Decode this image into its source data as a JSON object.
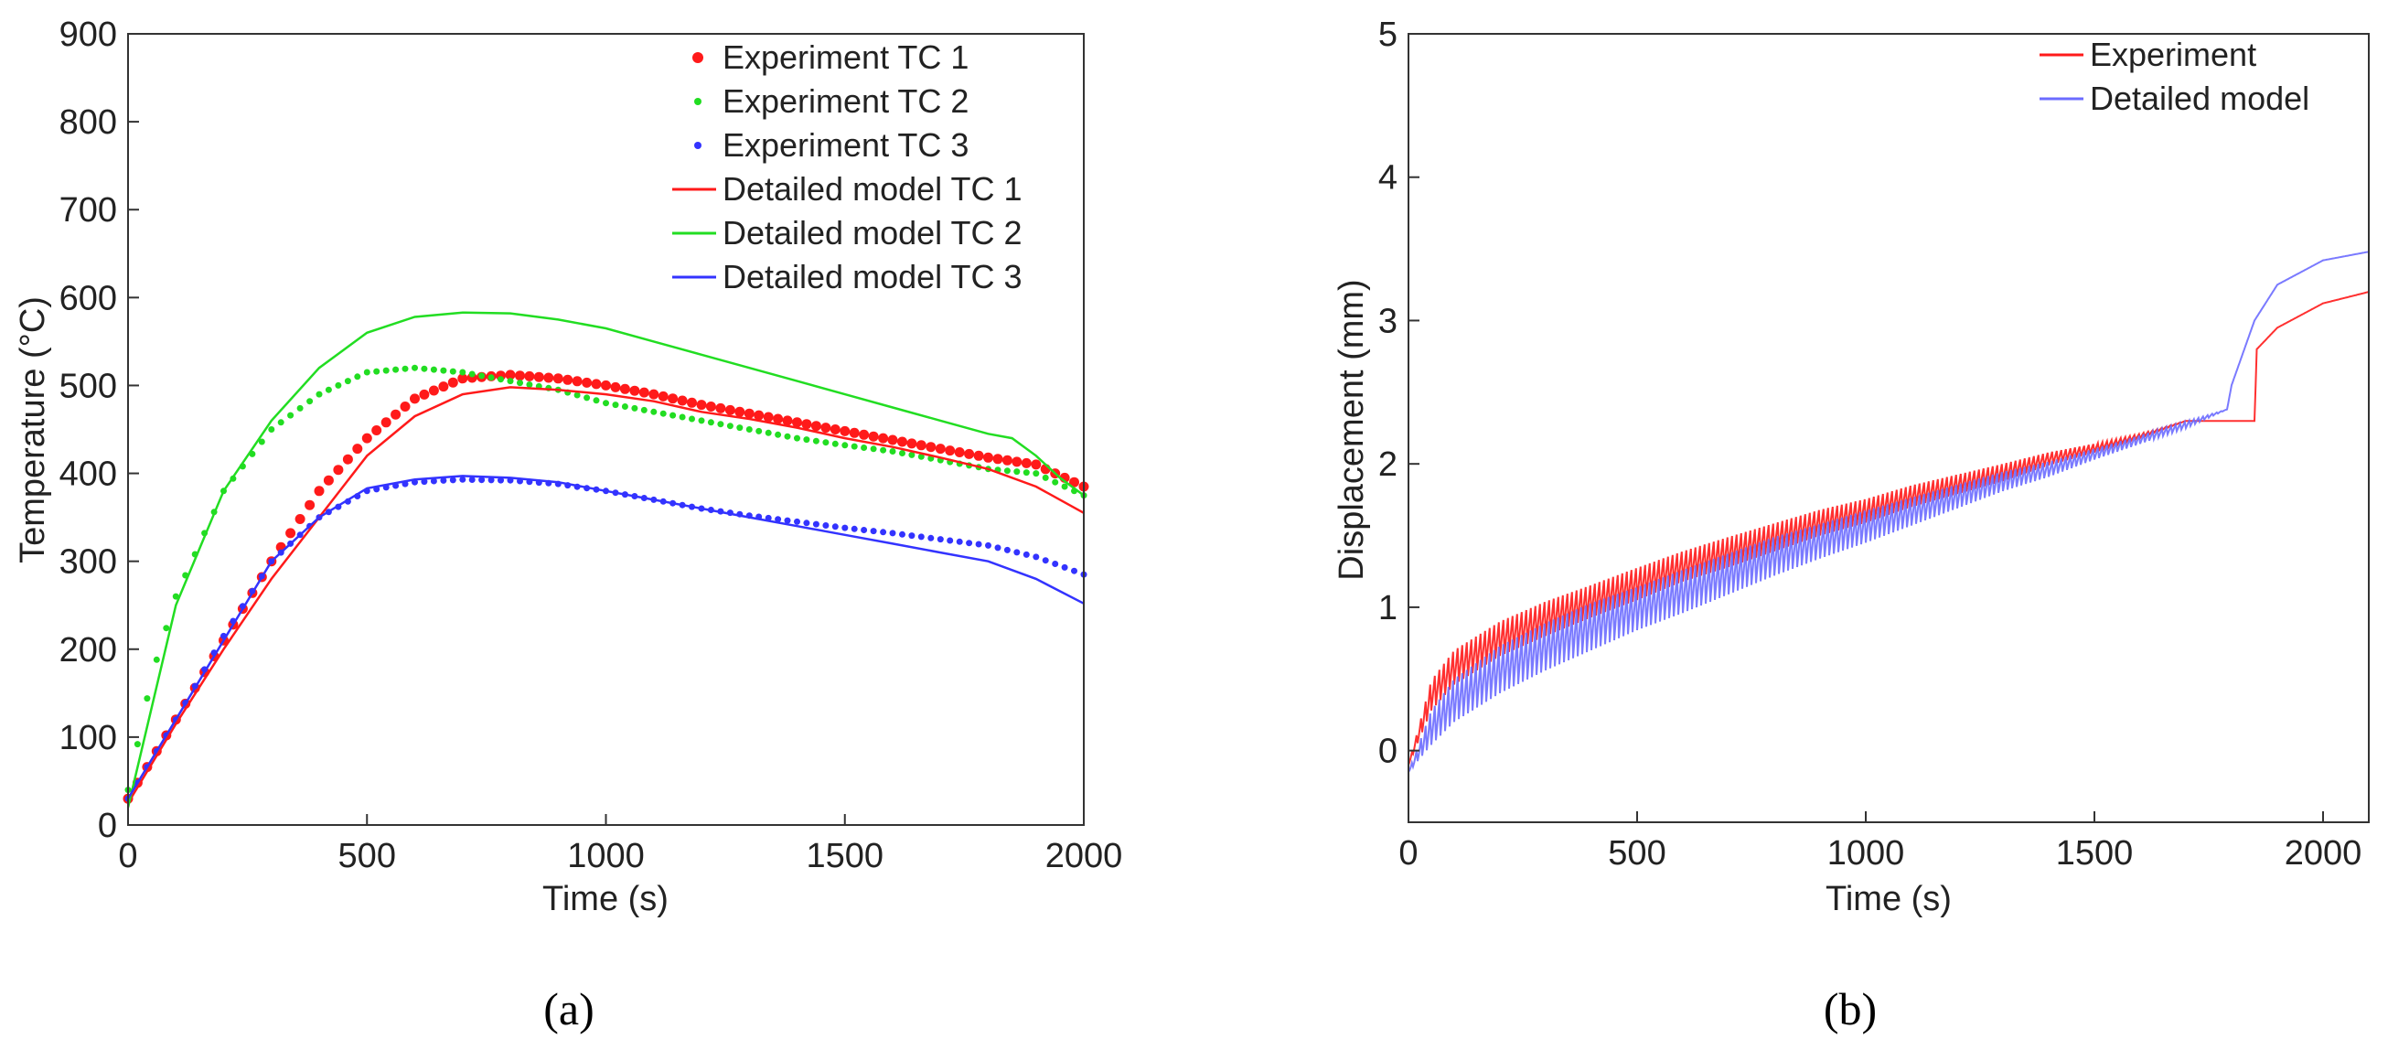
{
  "chart_data": [
    {
      "type": "line",
      "panel_label": "(a)",
      "xlabel": "Time (s)",
      "ylabel": "Temperature (°C)",
      "xlim": [
        0,
        2000
      ],
      "ylim": [
        0,
        900
      ],
      "xticks": [
        0,
        500,
        1000,
        1500,
        2000
      ],
      "yticks": [
        0,
        100,
        200,
        300,
        400,
        500,
        600,
        700,
        800,
        900
      ],
      "legend_position": "top-right",
      "series": [
        {
          "name": "Experiment TC 1",
          "style": "dots-large",
          "color": "#ff1a1a",
          "x": [
            0,
            100,
            200,
            300,
            400,
            500,
            600,
            700,
            800,
            900,
            1000,
            1100,
            1200,
            1300,
            1400,
            1500,
            1600,
            1700,
            1800,
            1900,
            2000
          ],
          "y": [
            30,
            120,
            210,
            300,
            380,
            440,
            485,
            508,
            512,
            508,
            500,
            490,
            478,
            468,
            458,
            448,
            438,
            428,
            418,
            410,
            385
          ]
        },
        {
          "name": "Experiment TC 2",
          "style": "dots-small",
          "color": "#22dd22",
          "x": [
            0,
            50,
            100,
            200,
            300,
            400,
            500,
            600,
            700,
            800,
            900,
            1000,
            1100,
            1200,
            1300,
            1400,
            1500,
            1600,
            1700,
            1800,
            1900,
            2000
          ],
          "y": [
            40,
            170,
            260,
            380,
            450,
            490,
            515,
            520,
            515,
            505,
            495,
            480,
            470,
            460,
            450,
            440,
            432,
            425,
            415,
            405,
            400,
            375
          ]
        },
        {
          "name": "Experiment TC 3",
          "style": "dots-small",
          "color": "#3333ff",
          "x": [
            0,
            100,
            200,
            300,
            400,
            500,
            600,
            700,
            800,
            900,
            1000,
            1100,
            1200,
            1300,
            1400,
            1500,
            1600,
            1700,
            1800,
            1900,
            2000
          ],
          "y": [
            30,
            120,
            215,
            300,
            350,
            380,
            390,
            393,
            392,
            388,
            380,
            370,
            360,
            352,
            345,
            338,
            332,
            325,
            318,
            305,
            285
          ]
        },
        {
          "name": "Detailed model TC 1",
          "style": "line",
          "color": "#ff1a1a",
          "x": [
            0,
            100,
            200,
            300,
            400,
            500,
            600,
            700,
            800,
            900,
            1000,
            1100,
            1200,
            1300,
            1400,
            1500,
            1600,
            1700,
            1800,
            1900,
            2000
          ],
          "y": [
            25,
            115,
            200,
            280,
            350,
            420,
            465,
            490,
            498,
            495,
            490,
            482,
            470,
            462,
            452,
            440,
            430,
            418,
            405,
            385,
            355
          ]
        },
        {
          "name": "Detailed model TC 2",
          "style": "line",
          "color": "#22dd22",
          "x": [
            0,
            100,
            200,
            300,
            400,
            500,
            600,
            700,
            800,
            900,
            1000,
            1100,
            1200,
            1300,
            1400,
            1500,
            1600,
            1700,
            1800,
            1850,
            1900,
            1950,
            2000
          ],
          "y": [
            20,
            250,
            380,
            460,
            520,
            560,
            578,
            583,
            582,
            575,
            565,
            550,
            535,
            520,
            505,
            490,
            475,
            460,
            445,
            440,
            420,
            395,
            375
          ]
        },
        {
          "name": "Detailed model TC 3",
          "style": "line",
          "color": "#3333ff",
          "x": [
            0,
            100,
            200,
            300,
            400,
            500,
            600,
            700,
            800,
            900,
            1000,
            1100,
            1200,
            1300,
            1400,
            1500,
            1600,
            1700,
            1800,
            1900,
            2000
          ],
          "y": [
            30,
            120,
            210,
            300,
            350,
            383,
            393,
            397,
            395,
            390,
            380,
            370,
            360,
            350,
            340,
            330,
            320,
            310,
            300,
            280,
            252
          ]
        }
      ]
    },
    {
      "type": "line",
      "panel_label": "(b)",
      "xlabel": "Time (s)",
      "ylabel": "Displacement (mm)",
      "xlim": [
        0,
        2100
      ],
      "ylim": [
        -0.5,
        5
      ],
      "xticks": [
        0,
        500,
        1000,
        1500,
        2000
      ],
      "yticks": [
        0,
        1,
        2,
        3,
        4,
        5
      ],
      "legend_position": "top-right",
      "series": [
        {
          "name": "Experiment",
          "style": "line-oscillating",
          "color": "#ff1a1a",
          "x": [
            0,
            50,
            100,
            200,
            300,
            400,
            500,
            600,
            700,
            800,
            900,
            1000,
            1100,
            1200,
            1300,
            1400,
            1500,
            1600,
            1700,
            1800,
            1850,
            1855,
            1900,
            2000,
            2100
          ],
          "y": [
            -0.1,
            0.42,
            0.62,
            0.82,
            0.96,
            1.08,
            1.2,
            1.32,
            1.42,
            1.52,
            1.62,
            1.7,
            1.8,
            1.88,
            1.96,
            2.05,
            2.12,
            2.2,
            2.3,
            2.3,
            2.3,
            2.8,
            2.95,
            3.12,
            3.2
          ],
          "amplitude": [
            0,
            0.14,
            0.16,
            0.16,
            0.16,
            0.15,
            0.15,
            0.14,
            0.14,
            0.13,
            0.12,
            0.11,
            0.1,
            0.09,
            0.08,
            0.06,
            0.04,
            0.02,
            0,
            0,
            0,
            0,
            0,
            0,
            0
          ]
        },
        {
          "name": "Detailed model",
          "style": "line-oscillating",
          "color": "#6b6bff",
          "x": [
            0,
            50,
            100,
            200,
            300,
            400,
            500,
            600,
            700,
            800,
            900,
            1000,
            1100,
            1200,
            1300,
            1400,
            1500,
            1600,
            1700,
            1790,
            1800,
            1850,
            1900,
            2000,
            2100
          ],
          "y": [
            -0.15,
            0.2,
            0.4,
            0.62,
            0.78,
            0.92,
            1.04,
            1.16,
            1.28,
            1.4,
            1.5,
            1.6,
            1.7,
            1.8,
            1.9,
            1.98,
            2.08,
            2.18,
            2.28,
            2.38,
            2.55,
            3.0,
            3.25,
            3.42,
            3.48
          ],
          "amplitude": [
            0,
            0.16,
            0.2,
            0.22,
            0.22,
            0.22,
            0.2,
            0.2,
            0.19,
            0.18,
            0.16,
            0.15,
            0.13,
            0.11,
            0.09,
            0.07,
            0.05,
            0.04,
            0.03,
            0,
            0,
            0,
            0,
            0,
            0
          ]
        }
      ]
    }
  ]
}
